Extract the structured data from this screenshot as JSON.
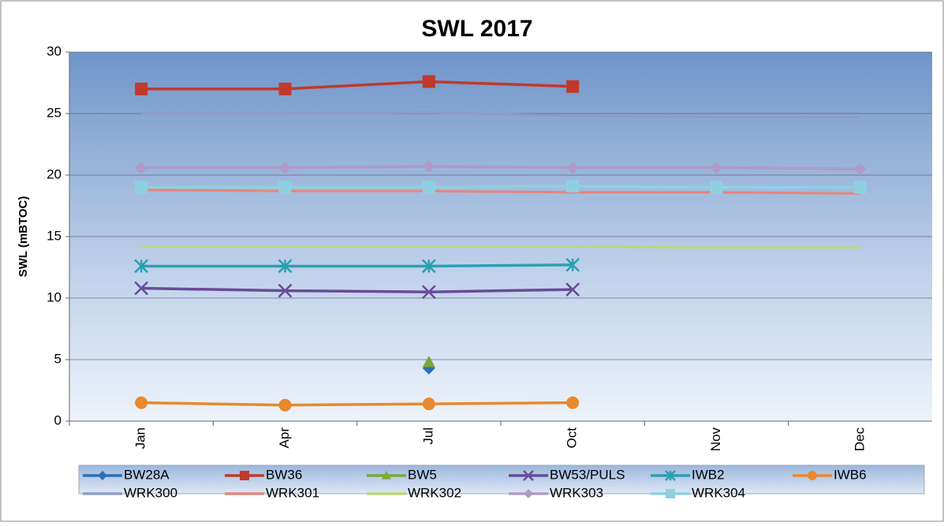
{
  "chart_data": {
    "type": "line",
    "title": "SWL 2017",
    "ylabel": "SWL (mBTOC)",
    "categories": [
      "Jan",
      "Apr",
      "Jul",
      "Oct",
      "Nov",
      "Dec"
    ],
    "ylim": [
      0,
      30
    ],
    "yticks": [
      0,
      5,
      10,
      15,
      20,
      25,
      30
    ],
    "grid": true,
    "legend": "bottom",
    "series": [
      {
        "name": "BW28A",
        "color": "#2f6fb5",
        "marker": "diamond",
        "values": [
          null,
          null,
          4.3,
          null,
          null,
          null
        ]
      },
      {
        "name": "BW36",
        "color": "#c0392b",
        "marker": "square",
        "values": [
          27.0,
          27.0,
          27.6,
          27.2,
          null,
          null
        ]
      },
      {
        "name": "BW5",
        "color": "#7aa83a",
        "marker": "triangle",
        "values": [
          null,
          null,
          4.8,
          null,
          null,
          null
        ]
      },
      {
        "name": "BW53/PULS",
        "color": "#6a4a98",
        "marker": "x",
        "values": [
          10.8,
          10.6,
          10.5,
          10.7,
          null,
          null
        ]
      },
      {
        "name": "IWB2",
        "color": "#2aa0b0",
        "marker": "asterisk",
        "values": [
          12.6,
          12.6,
          12.6,
          12.7,
          null,
          null
        ]
      },
      {
        "name": "IWB6",
        "color": "#e8892e",
        "marker": "circle",
        "values": [
          1.5,
          1.3,
          1.4,
          1.5,
          null,
          null
        ]
      },
      {
        "name": "WRK300",
        "color": "#8c9cc4",
        "marker": "none",
        "values": [
          25.0,
          25.0,
          25.1,
          24.8,
          24.7,
          24.7
        ]
      },
      {
        "name": "WRK301",
        "color": "#e8847a",
        "marker": "none",
        "values": [
          18.8,
          18.7,
          18.7,
          18.6,
          18.6,
          18.5
        ]
      },
      {
        "name": "WRK302",
        "color": "#b8d97a",
        "marker": "none",
        "values": [
          14.2,
          14.2,
          14.2,
          14.2,
          14.1,
          14.1
        ]
      },
      {
        "name": "WRK303",
        "color": "#b09ac8",
        "marker": "diamond",
        "values": [
          20.6,
          20.6,
          20.7,
          20.6,
          20.6,
          20.5
        ]
      },
      {
        "name": "WRK304",
        "color": "#8fd0e0",
        "marker": "square",
        "values": [
          19.0,
          19.0,
          19.0,
          19.1,
          19.0,
          19.0
        ]
      }
    ]
  }
}
